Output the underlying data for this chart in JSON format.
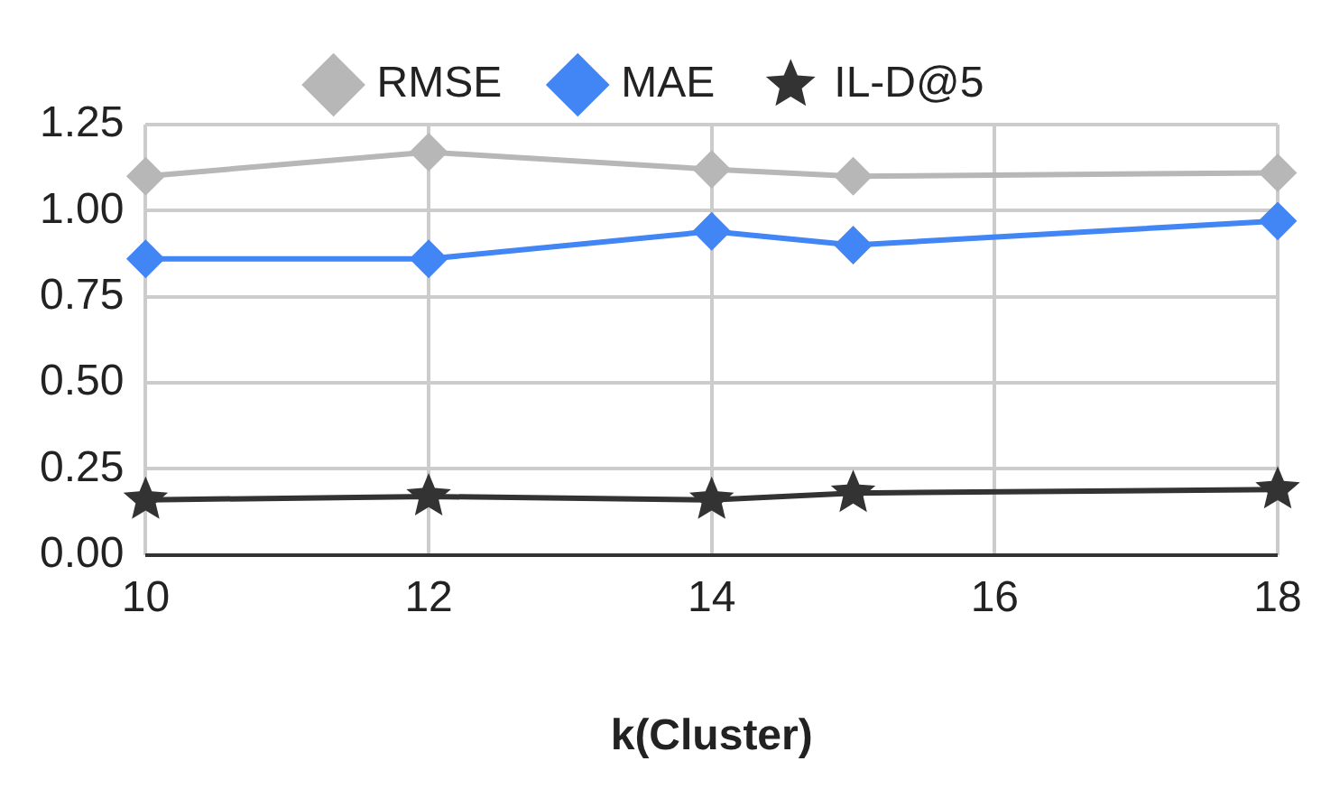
{
  "chart_data": {
    "type": "line",
    "xlabel": "k(Cluster)",
    "x": [
      10,
      12,
      14,
      15,
      18
    ],
    "series": [
      {
        "name": "RMSE",
        "color": "#b7b7b7",
        "marker": "diamond",
        "values": [
          1.1,
          1.17,
          1.12,
          1.1,
          1.11
        ]
      },
      {
        "name": "MAE",
        "color": "#4285f4",
        "marker": "diamond",
        "values": [
          0.86,
          0.86,
          0.94,
          0.9,
          0.97
        ]
      },
      {
        "name": "IL-D@5",
        "color": "#333333",
        "marker": "star",
        "values": [
          0.16,
          0.17,
          0.16,
          0.18,
          0.19
        ]
      }
    ],
    "xlim": [
      10,
      18
    ],
    "xticks": [
      10,
      12,
      14,
      16,
      18
    ],
    "ylim": [
      0,
      1.25
    ],
    "yticks": [
      {
        "value": 0,
        "label": "0.00"
      },
      0.25,
      {
        "value": 0.5,
        "label": "0.50"
      },
      0.75,
      {
        "value": 1,
        "label": "1.00"
      },
      1.25
    ],
    "grid": true,
    "legend": "top"
  }
}
